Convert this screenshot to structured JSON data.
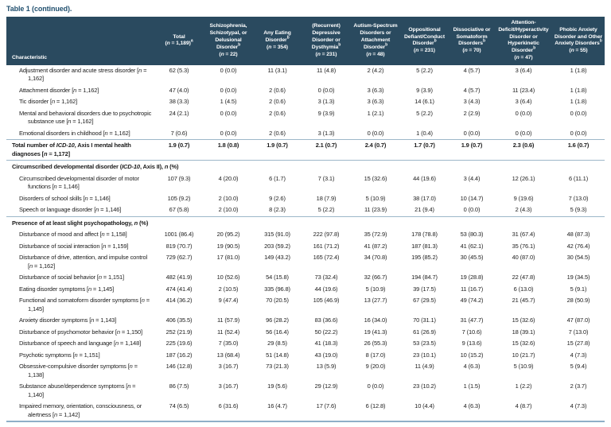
{
  "title": "Table 1 (continued).",
  "colors": {
    "header_bg": "#2a4a5f",
    "title_text": "#21506f",
    "rule": "#9db7c9",
    "bottom_rule": "#8fafc7"
  },
  "table": {
    "columns": [
      {
        "label": "Characteristic"
      },
      {
        "label": "Total",
        "n": "(n = 1,189)",
        "sup": "a",
        "sup_on": "n"
      },
      {
        "label": "Schizophrenia, Schizotypal, or Delusional Disorder",
        "n": "(n = 22)",
        "sup": "b",
        "sup_on": "label"
      },
      {
        "label": "Any Eating Disorder",
        "n": "(n = 354)",
        "sup": "b",
        "sup_on": "label"
      },
      {
        "label": "(Recurrent) Depressive Disorder or Dysthymia",
        "n": "(n = 231)",
        "sup": "b",
        "sup_on": "label"
      },
      {
        "label": "Autism-Spectrum Disorders or Attachment Disorder",
        "n": "(n = 48)",
        "sup": "b",
        "sup_on": "label"
      },
      {
        "label": "Oppositional Defiant/Conduct Disorder",
        "n": "(n = 231)",
        "sup": "b",
        "sup_on": "label"
      },
      {
        "label": "Dissociative or Somatoform Disorders",
        "n": "(n = 70)",
        "sup": "b",
        "sup_on": "label"
      },
      {
        "label": "Attention-Deficit/Hyperactivity Disorder or Hyperkinetic Disorder",
        "n": "(n = 47)",
        "sup": "b",
        "sup_on": "label"
      },
      {
        "label": "Phobic Anxiety Disorder and Other Anxiety Disorders",
        "n": "(n = 55)",
        "sup": "b",
        "sup_on": "label"
      }
    ],
    "rows": [
      {
        "type": "data",
        "label": "Adjustment disorder and acute stress disorder [n = 1,162]",
        "values": [
          "62 (5.3)",
          "0 (0.0)",
          "11 (3.1)",
          "11 (4.8)",
          "2 (4.2)",
          "5 (2.2)",
          "4 (5.7)",
          "3 (6.4)",
          "1 (1.8)"
        ]
      },
      {
        "type": "data",
        "label": "Attachment disorder [n = 1,162]",
        "values": [
          "47 (4.0)",
          "0 (0.0)",
          "2 (0.6)",
          "0 (0.0)",
          "3 (6.3)",
          "9 (3.9)",
          "4 (5.7)",
          "11 (23.4)",
          "1 (1.8)"
        ]
      },
      {
        "type": "data",
        "label": "Tic disorder [n = 1,162]",
        "values": [
          "38 (3.3)",
          "1 (4.5)",
          "2 (0.6)",
          "3 (1.3)",
          "3 (6.3)",
          "14 (6.1)",
          "3 (4.3)",
          "3 (6.4)",
          "1 (1.8)"
        ]
      },
      {
        "type": "data",
        "label": "Mental and behavioral disorders due to psychotropic substance use [n = 1,162]",
        "values": [
          "24 (2.1)",
          "0 (0.0)",
          "2 (0.6)",
          "9 (3.9)",
          "1 (2.1)",
          "5 (2.2)",
          "2 (2.9)",
          "0 (0.0)",
          "0 (0.0)"
        ]
      },
      {
        "type": "data",
        "label": "Emotional disorders in childhood [n = 1,162]",
        "values": [
          "7 (0.6)",
          "0 (0.0)",
          "2 (0.6)",
          "3 (1.3)",
          "0 (0.0)",
          "1 (0.4)",
          "0 (0.0)",
          "0 (0.0)",
          "0 (0.0)"
        ]
      },
      {
        "type": "total",
        "label": "Total number of ICD-10, Axis I mental health diagnoses [n = 1,172]",
        "values": [
          "1.9 (0.7)",
          "1.8 (0.8)",
          "1.9 (0.7)",
          "2.1 (0.7)",
          "2.4 (0.7)",
          "1.7 (0.7)",
          "1.9 (0.7)",
          "2.3 (0.6)",
          "1.6 (0.7)"
        ]
      },
      {
        "type": "section",
        "label": "Circumscribed developmental disorder (ICD-10, Axis II), n (%)"
      },
      {
        "type": "data",
        "label": "Circumscribed developmental disorder of motor functions [n = 1,146]",
        "values": [
          "107 (9.3)",
          "4 (20.0)",
          "6 (1.7)",
          "7 (3.1)",
          "15 (32.6)",
          "44 (19.6)",
          "3 (4.4)",
          "12 (26.1)",
          "6 (11.1)"
        ]
      },
      {
        "type": "data",
        "label": "Disorders of school skills [n = 1,146]",
        "values": [
          "105 (9.2)",
          "2 (10.0)",
          "9 (2.6)",
          "18 (7.9)",
          "5 (10.9)",
          "38 (17.0)",
          "10 (14.7)",
          "9 (19.6)",
          "7 (13.0)"
        ]
      },
      {
        "type": "data",
        "label": "Speech or language disorder [n = 1,146]",
        "values": [
          "67 (5.8)",
          "2 (10.0)",
          "8 (2.3)",
          "5 (2.2)",
          "11 (23.9)",
          "21 (9.4)",
          "0 (0.0)",
          "2 (4.3)",
          "5 (9.3)"
        ]
      },
      {
        "type": "section",
        "ruled": true,
        "label": "Presence of at least slight psychopathology, n (%)"
      },
      {
        "type": "data",
        "label": "Disturbance of mood and affect [n = 1,158]",
        "values": [
          "1001 (86.4)",
          "20 (95.2)",
          "315 (91.0)",
          "222 (97.8)",
          "35 (72.9)",
          "178 (78.8)",
          "53 (80.3)",
          "31 (67.4)",
          "48 (87.3)"
        ]
      },
      {
        "type": "data",
        "label": "Disturbance of social interaction [n = 1,159]",
        "values": [
          "819 (70.7)",
          "19 (90.5)",
          "203 (59.2)",
          "161 (71.2)",
          "41 (87.2)",
          "187 (81.3)",
          "41 (62.1)",
          "35 (76.1)",
          "42 (76.4)"
        ]
      },
      {
        "type": "data",
        "label": "Disturbance of drive, attention, and impulse control [n = 1,162]",
        "values": [
          "729 (62.7)",
          "17 (81.0)",
          "149 (43.2)",
          "165 (72.4)",
          "34 (70.8)",
          "195 (85.2)",
          "30 (45.5)",
          "40 (87.0)",
          "30 (54.5)"
        ]
      },
      {
        "type": "data",
        "label": "Disturbance of social behavior [n = 1,151]",
        "values": [
          "482 (41.9)",
          "10 (52.6)",
          "54 (15.8)",
          "73 (32.4)",
          "32 (66.7)",
          "194 (84.7)",
          "19 (28.8)",
          "22 (47.8)",
          "19 (34.5)"
        ]
      },
      {
        "type": "data",
        "label": "Eating disorder symptoms [n = 1,145]",
        "values": [
          "474 (41.4)",
          "2 (10.5)",
          "335 (96.8)",
          "44 (19.6)",
          "5 (10.9)",
          "39 (17.5)",
          "11 (16.7)",
          "6 (13.0)",
          "5 (9.1)"
        ]
      },
      {
        "type": "data",
        "label": "Functional and somatoform disorder symptoms [n = 1,145]",
        "values": [
          "414 (36.2)",
          "9 (47.4)",
          "70 (20.5)",
          "105 (46.9)",
          "13 (27.7)",
          "67 (29.5)",
          "49 (74.2)",
          "21 (45.7)",
          "28 (50.9)"
        ]
      },
      {
        "type": "data",
        "label": "Anxiety disorder symptoms [n = 1,143]",
        "values": [
          "406 (35.5)",
          "11 (57.9)",
          "96 (28.2)",
          "83 (36.6)",
          "16 (34.0)",
          "70 (31.1)",
          "31 (47.7)",
          "15 (32.6)",
          "47 (87.0)"
        ]
      },
      {
        "type": "data",
        "label": "Disturbance of psychomotor behavior [n = 1,150]",
        "values": [
          "252 (21.9)",
          "11 (52.4)",
          "56 (16.4)",
          "50 (22.2)",
          "19 (41.3)",
          "61 (26.9)",
          "7 (10.6)",
          "18 (39.1)",
          "7 (13.0)"
        ]
      },
      {
        "type": "data",
        "label": "Disturbance of speech and language [n = 1,148]",
        "values": [
          "225 (19.6)",
          "7 (35.0)",
          "29 (8.5)",
          "41 (18.3)",
          "26 (55.3)",
          "53 (23.5)",
          "9 (13.6)",
          "15 (32.6)",
          "15 (27.8)"
        ]
      },
      {
        "type": "data",
        "label": "Psychotic symptoms [n = 1,151]",
        "values": [
          "187 (16.2)",
          "13 (68.4)",
          "51 (14.8)",
          "43 (19.0)",
          "8 (17.0)",
          "23 (10.1)",
          "10 (15.2)",
          "10 (21.7)",
          "4 (7.3)"
        ]
      },
      {
        "type": "data",
        "label": "Obsessive-compulsive disorder symptoms [n = 1,138]",
        "values": [
          "146 (12.8)",
          "3 (16.7)",
          "73 (21.3)",
          "13 (5.9)",
          "9 (20.0)",
          "11 (4.9)",
          "4 (6.3)",
          "5 (10.9)",
          "5 (9.4)"
        ]
      },
      {
        "type": "data",
        "label": "Substance abuse/dependence symptoms [n = 1,140]",
        "values": [
          "86 (7.5)",
          "3 (16.7)",
          "19 (5.6)",
          "29 (12.9)",
          "0 (0.0)",
          "23 (10.2)",
          "1 (1.5)",
          "1 (2.2)",
          "2 (3.7)"
        ]
      },
      {
        "type": "data",
        "label": "Impaired memory, orientation, consciousness, or alertness [n = 1,142]",
        "values": [
          "74 (6.5)",
          "6 (31.6)",
          "16 (4.7)",
          "17 (7.6)",
          "6 (12.8)",
          "10 (4.4)",
          "4 (6.3)",
          "4 (8.7)",
          "4 (7.3)"
        ]
      }
    ]
  }
}
